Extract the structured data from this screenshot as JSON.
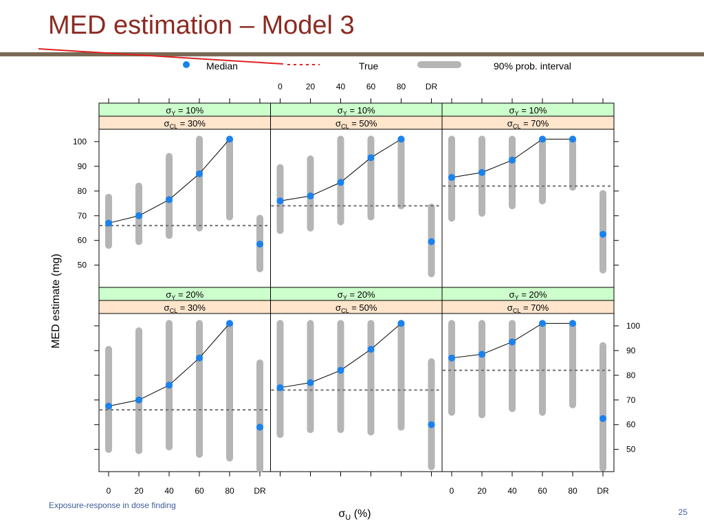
{
  "slide": {
    "title": "MED estimation – Model 3",
    "footer": "Exposure-response in dose finding",
    "page_number": "25"
  },
  "colors": {
    "title": "#8b2b22",
    "rule": "#7a6a55",
    "strip_top": "#ccffcc",
    "strip_bottom": "#ffe5cc",
    "median_point": "#1a82ee",
    "interval": "#b5b5b5",
    "true_line": "#707070",
    "footer": "#3f5c9a"
  },
  "legend": {
    "median": "Median",
    "true": "True",
    "interval": "90% prob. interval"
  },
  "chart_data": {
    "type": "scatter",
    "layout": "trellis 3 columns x 2 rows",
    "xlabel_symbol": "σ",
    "xlabel_sub": "U",
    "xlabel_tail": " (%)",
    "ylabel": "MED estimate (mg)",
    "x_categories": [
      "0",
      "20",
      "40",
      "60",
      "80",
      "DR"
    ],
    "y_ticks": [
      "50",
      "60",
      "70",
      "80",
      "90",
      "100"
    ],
    "ylim": [
      41,
      105
    ],
    "strip_symbol": "σ",
    "panels": [
      {
        "row": 0,
        "col": 0,
        "sub_top": "Y",
        "strip_top_value": "10%",
        "sub_bottom": "CL",
        "strip_bottom_value": "30%",
        "true_value": 66,
        "median": [
          67,
          70,
          76.5,
          87,
          101,
          58.5
        ],
        "interval_low": [
          58,
          59.5,
          62,
          65,
          69.5,
          48.5
        ],
        "interval_high": [
          77.5,
          82,
          94,
          101,
          101,
          69
        ]
      },
      {
        "row": 0,
        "col": 1,
        "sub_top": "Y",
        "strip_top_value": "10%",
        "sub_bottom": "CL",
        "strip_bottom_value": "50%",
        "true_value": 74,
        "median": [
          76,
          78,
          83.5,
          93.5,
          101,
          59.5
        ],
        "interval_low": [
          64,
          65,
          67.5,
          69.5,
          74,
          46.5
        ],
        "interval_high": [
          89.5,
          93,
          101,
          101,
          101,
          73.5
        ]
      },
      {
        "row": 0,
        "col": 2,
        "sub_top": "Y",
        "strip_top_value": "10%",
        "sub_bottom": "CL",
        "strip_bottom_value": "70%",
        "true_value": 82,
        "median": [
          85.5,
          87.5,
          92.5,
          101,
          101,
          62.5
        ],
        "interval_low": [
          69,
          71,
          74,
          76,
          81.5,
          48
        ],
        "interval_high": [
          101,
          101,
          101,
          101,
          101,
          79
        ]
      },
      {
        "row": 1,
        "col": 0,
        "sub_top": "Y",
        "strip_top_value": "20%",
        "sub_bottom": "CL",
        "strip_bottom_value": "30%",
        "true_value": 66,
        "median": [
          67.5,
          70,
          76,
          87,
          101,
          59
        ],
        "interval_low": [
          50,
          49.5,
          51,
          48,
          46.5,
          42
        ],
        "interval_high": [
          90.5,
          98,
          101,
          101,
          101,
          85
        ]
      },
      {
        "row": 1,
        "col": 1,
        "sub_top": "Y",
        "strip_top_value": "20%",
        "sub_bottom": "CL",
        "strip_bottom_value": "50%",
        "true_value": 74,
        "median": [
          75,
          77,
          82,
          90.5,
          101,
          60
        ],
        "interval_low": [
          56,
          58,
          58,
          57,
          59,
          43
        ],
        "interval_high": [
          101,
          101,
          101,
          101,
          101,
          85.5
        ]
      },
      {
        "row": 1,
        "col": 2,
        "sub_top": "Y",
        "strip_top_value": "20%",
        "sub_bottom": "CL",
        "strip_bottom_value": "70%",
        "true_value": 82,
        "median": [
          87,
          88.5,
          93.5,
          101,
          101,
          62.5
        ],
        "interval_low": [
          65,
          64,
          66.5,
          65,
          68,
          42.5
        ],
        "interval_high": [
          101,
          101,
          101,
          101,
          101,
          92
        ]
      }
    ]
  }
}
